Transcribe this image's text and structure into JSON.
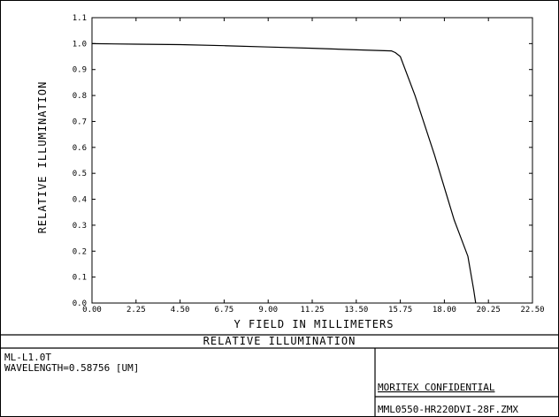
{
  "chart_data": {
    "type": "line",
    "title": "RELATIVE ILLUMINATION",
    "xlabel": "Y FIELD IN MILLIMETERS",
    "ylabel": "RELATIVE ILLUMINATION",
    "xlim": [
      0,
      22.5
    ],
    "ylim": [
      0,
      1.1
    ],
    "xticks": [
      "0.00",
      "2.25",
      "4.50",
      "6.75",
      "9.00",
      "11.25",
      "13.50",
      "15.75",
      "18.00",
      "20.25",
      "22.50"
    ],
    "yticks": [
      "0.0",
      "0.1",
      "0.2",
      "0.3",
      "0.4",
      "0.5",
      "0.6",
      "0.7",
      "0.8",
      "0.9",
      "1.0",
      "1.1"
    ],
    "grid": false,
    "series": [
      {
        "x": [
          0,
          2.25,
          4.5,
          6.75,
          9.0,
          11.25,
          13.5,
          15.3,
          15.5,
          15.75,
          16.5,
          17.5,
          18.5,
          19.2,
          19.5,
          19.6
        ],
        "y": [
          1.0,
          0.998,
          0.996,
          0.992,
          0.987,
          0.982,
          0.976,
          0.972,
          0.965,
          0.95,
          0.8,
          0.57,
          0.32,
          0.18,
          0.05,
          0.0
        ]
      }
    ]
  },
  "footer": {
    "title": "RELATIVE ILLUMINATION",
    "lens_name": "ML-L1.0T",
    "wavelength": "WAVELENGTH=0.58756 [UM]",
    "confidential": "MORITEX CONFIDENTIAL",
    "filename": "MML0550-HR220DVI-28F.ZMX"
  },
  "colors": {
    "line": "#000000",
    "background": "#ffffff"
  }
}
